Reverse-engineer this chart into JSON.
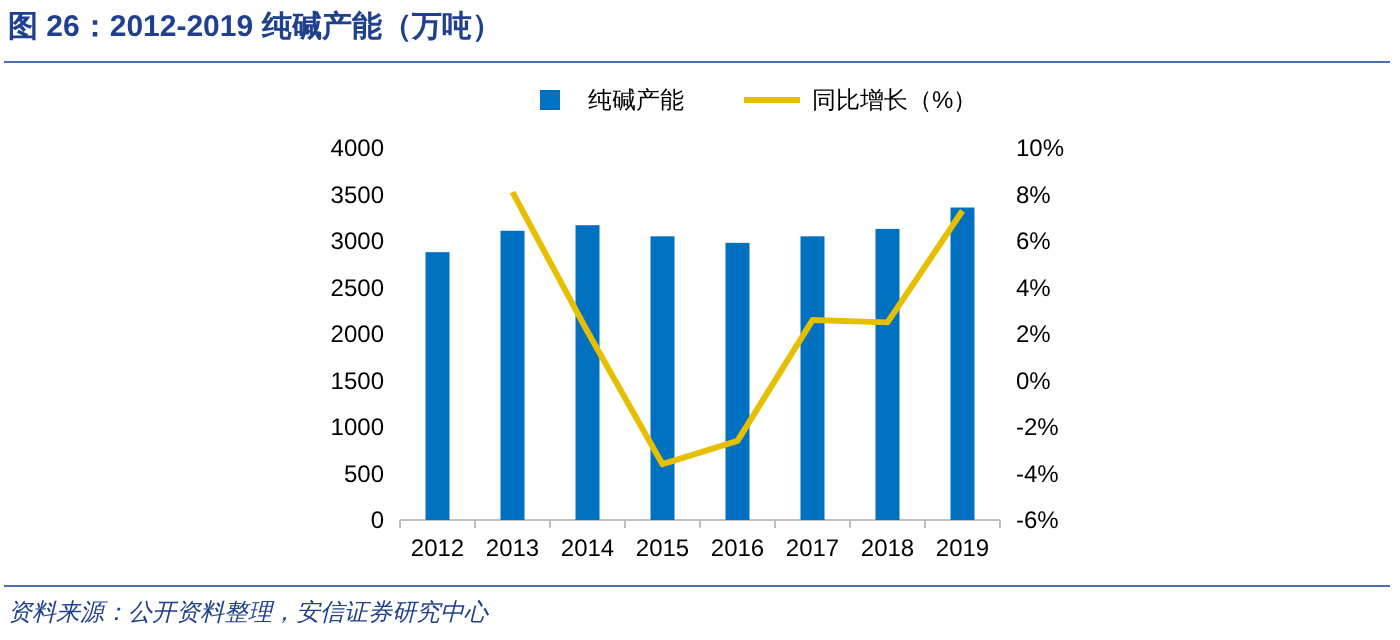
{
  "chart_data": {
    "type": "bar",
    "title": "图 26：2012-2019 纯碱产能（万吨）",
    "categories": [
      "2012",
      "2013",
      "2014",
      "2015",
      "2016",
      "2017",
      "2018",
      "2019"
    ],
    "series": [
      {
        "name": "纯碱产能",
        "color": "#0070c0",
        "values": [
          2880,
          3110,
          3170,
          3050,
          2980,
          3050,
          3130,
          3360
        ]
      },
      {
        "name": "同比增长（%）",
        "type": "line",
        "axis": "y2",
        "color": "#e6bf00",
        "values": [
          null,
          8.1,
          2.1,
          -3.6,
          -2.6,
          2.6,
          2.5,
          7.3
        ]
      }
    ],
    "ylim": [
      0,
      4000
    ],
    "yticks": [
      0,
      500,
      1000,
      1500,
      2000,
      2500,
      3000,
      3500,
      4000
    ],
    "y2lim": [
      -6,
      10
    ],
    "y2ticks": [
      {
        "value": -6,
        "label": "-6%"
      },
      {
        "value": -4,
        "label": "-4%"
      },
      {
        "value": -2,
        "label": "-2%"
      },
      {
        "value": 0,
        "label": "0%"
      },
      {
        "value": 2,
        "label": "2%"
      },
      {
        "value": 4,
        "label": "4%"
      },
      {
        "value": 6,
        "label": "6%"
      },
      {
        "value": 8,
        "label": "8%"
      },
      {
        "value": 10,
        "label": "10%"
      }
    ],
    "legend": "top",
    "annotations": [
      "资料来源：公开资料整理，安信证券研究中心"
    ]
  }
}
